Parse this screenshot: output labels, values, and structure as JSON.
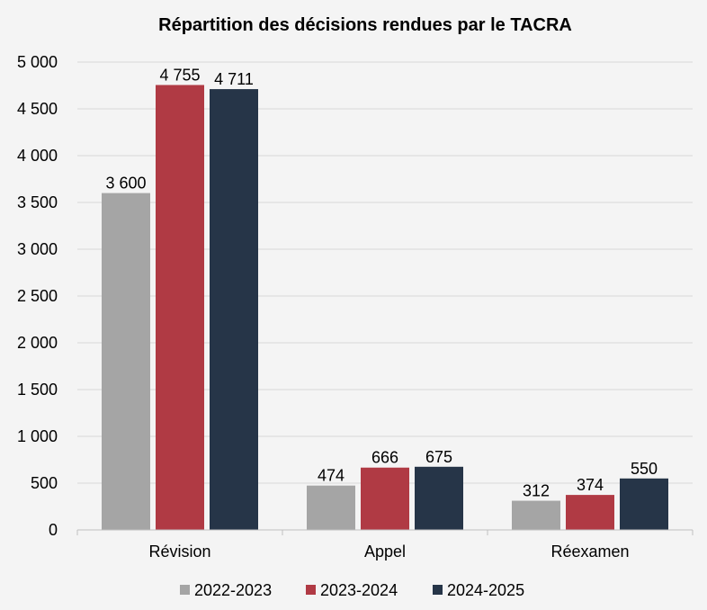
{
  "chart_data": {
    "type": "bar",
    "title": "Répartition des décisions rendues par le TACRA",
    "categories": [
      "Révision",
      "Appel",
      "Réexamen"
    ],
    "series": [
      {
        "name": "2022-2023",
        "color": "#a5a5a5",
        "values": [
          3600,
          474,
          312
        ],
        "labels": [
          "3 600",
          "474",
          "312"
        ]
      },
      {
        "name": "2023-2024",
        "color": "#b03a44",
        "values": [
          4755,
          666,
          374
        ],
        "labels": [
          "4 755",
          "666",
          "374"
        ]
      },
      {
        "name": "2024-2025",
        "color": "#263548",
        "values": [
          4711,
          675,
          550
        ],
        "labels": [
          "4 711",
          "675",
          "550"
        ]
      }
    ],
    "ylim": [
      0,
      5000
    ],
    "yticks": [
      0,
      500,
      1000,
      1500,
      2000,
      2500,
      3000,
      3500,
      4000,
      4500,
      5000
    ],
    "ytick_labels": [
      "0",
      "500",
      "1 000",
      "1 500",
      "2 000",
      "2 500",
      "3 000",
      "3 500",
      "4 000",
      "4 500",
      "5 000"
    ],
    "grid": true,
    "legend": "bottom",
    "xlabel": "",
    "ylabel": ""
  }
}
